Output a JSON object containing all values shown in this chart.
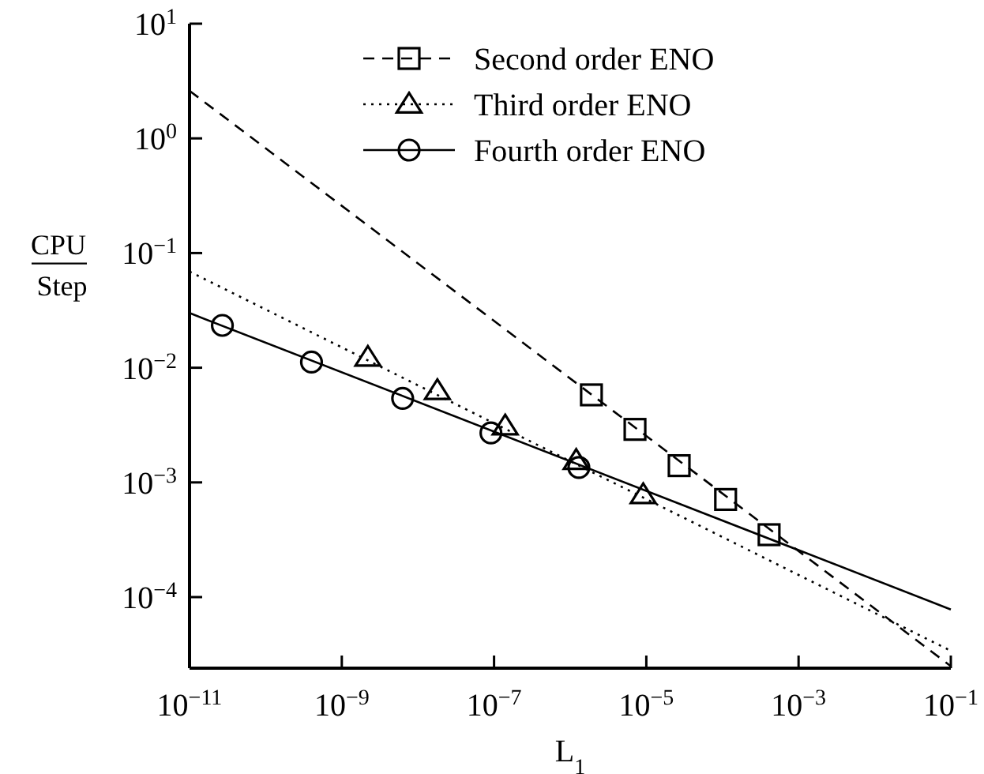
{
  "chart_data": {
    "type": "scatter",
    "xlabel": "L$_{1}$",
    "ylabel": "CPU Step",
    "log": "xy",
    "grid": false,
    "legend": "top",
    "xlim": [
      1e-11,
      0.1
    ],
    "xticks": [
      {
        "value": 1e-11,
        "label": "10$^{−11}$"
      },
      {
        "value": 1e-09,
        "label": "10$^{−9}$"
      },
      {
        "value": 1e-07,
        "label": "10$^{−7}$"
      },
      {
        "value": 1e-05,
        "label": "10$^{−5}$"
      },
      {
        "value": 0.001,
        "label": "10$^{−3}$"
      },
      {
        "value": 0.1,
        "label": "10$^{−1}$"
      }
    ],
    "ylim": [
      2.4e-05,
      10
    ],
    "yticks": [
      {
        "value": 0.0001,
        "label": "10$^{−4}$"
      },
      {
        "value": 0.001,
        "label": "10$^{−3}$"
      },
      {
        "value": 0.01,
        "label": "10$^{−2}$"
      },
      {
        "value": 0.1,
        "label": "10$^{−1}$"
      },
      {
        "value": 1,
        "label": "10$^{0}$"
      },
      {
        "value": 10,
        "label": "10$^{1}$"
      }
    ],
    "series": [
      {
        "name": "Second order ENO",
        "marker": "square",
        "line_style": "dashed",
        "color": "#000000",
        "x": [
          1.9e-06,
          7.1e-06,
          2.7e-05,
          0.00011,
          0.00041
        ],
        "values": [
          0.0058,
          0.0029,
          0.0014,
          0.00071,
          0.00035
        ]
      },
      {
        "name": "Third order ENO",
        "marker": "triangle",
        "line_style": "dotted",
        "color": "#000000",
        "x": [
          2.2e-09,
          1.8e-08,
          1.4e-07,
          1.2e-06,
          9.1e-06
        ],
        "values": [
          0.0123,
          0.0063,
          0.0031,
          0.00155,
          0.00078
        ]
      },
      {
        "name": "Fourth order ENO",
        "marker": "circle",
        "line_style": "solid",
        "color": "#000000",
        "x": [
          2.7e-11,
          4e-10,
          6.3e-09,
          9.1e-08,
          1.3e-06
        ],
        "values": [
          0.0234,
          0.0112,
          0.0054,
          0.0027,
          0.00135
        ]
      },
      {
        "type": "line",
        "line_style": "dashed",
        "marker": "none",
        "color": "#000000",
        "x": [
          1e-11,
          0.1
        ],
        "values": [
          2.6,
          2.5e-05
        ]
      },
      {
        "type": "line",
        "line_style": "dotted",
        "marker": "none",
        "color": "#000000",
        "x": [
          1e-11,
          0.1
        ],
        "values": [
          0.069,
          3.4e-05
        ]
      },
      {
        "type": "line",
        "line_style": "solid",
        "marker": "none",
        "color": "#000000",
        "x": [
          1e-11,
          0.1
        ],
        "values": [
          0.03,
          7.8e-05
        ]
      }
    ]
  }
}
